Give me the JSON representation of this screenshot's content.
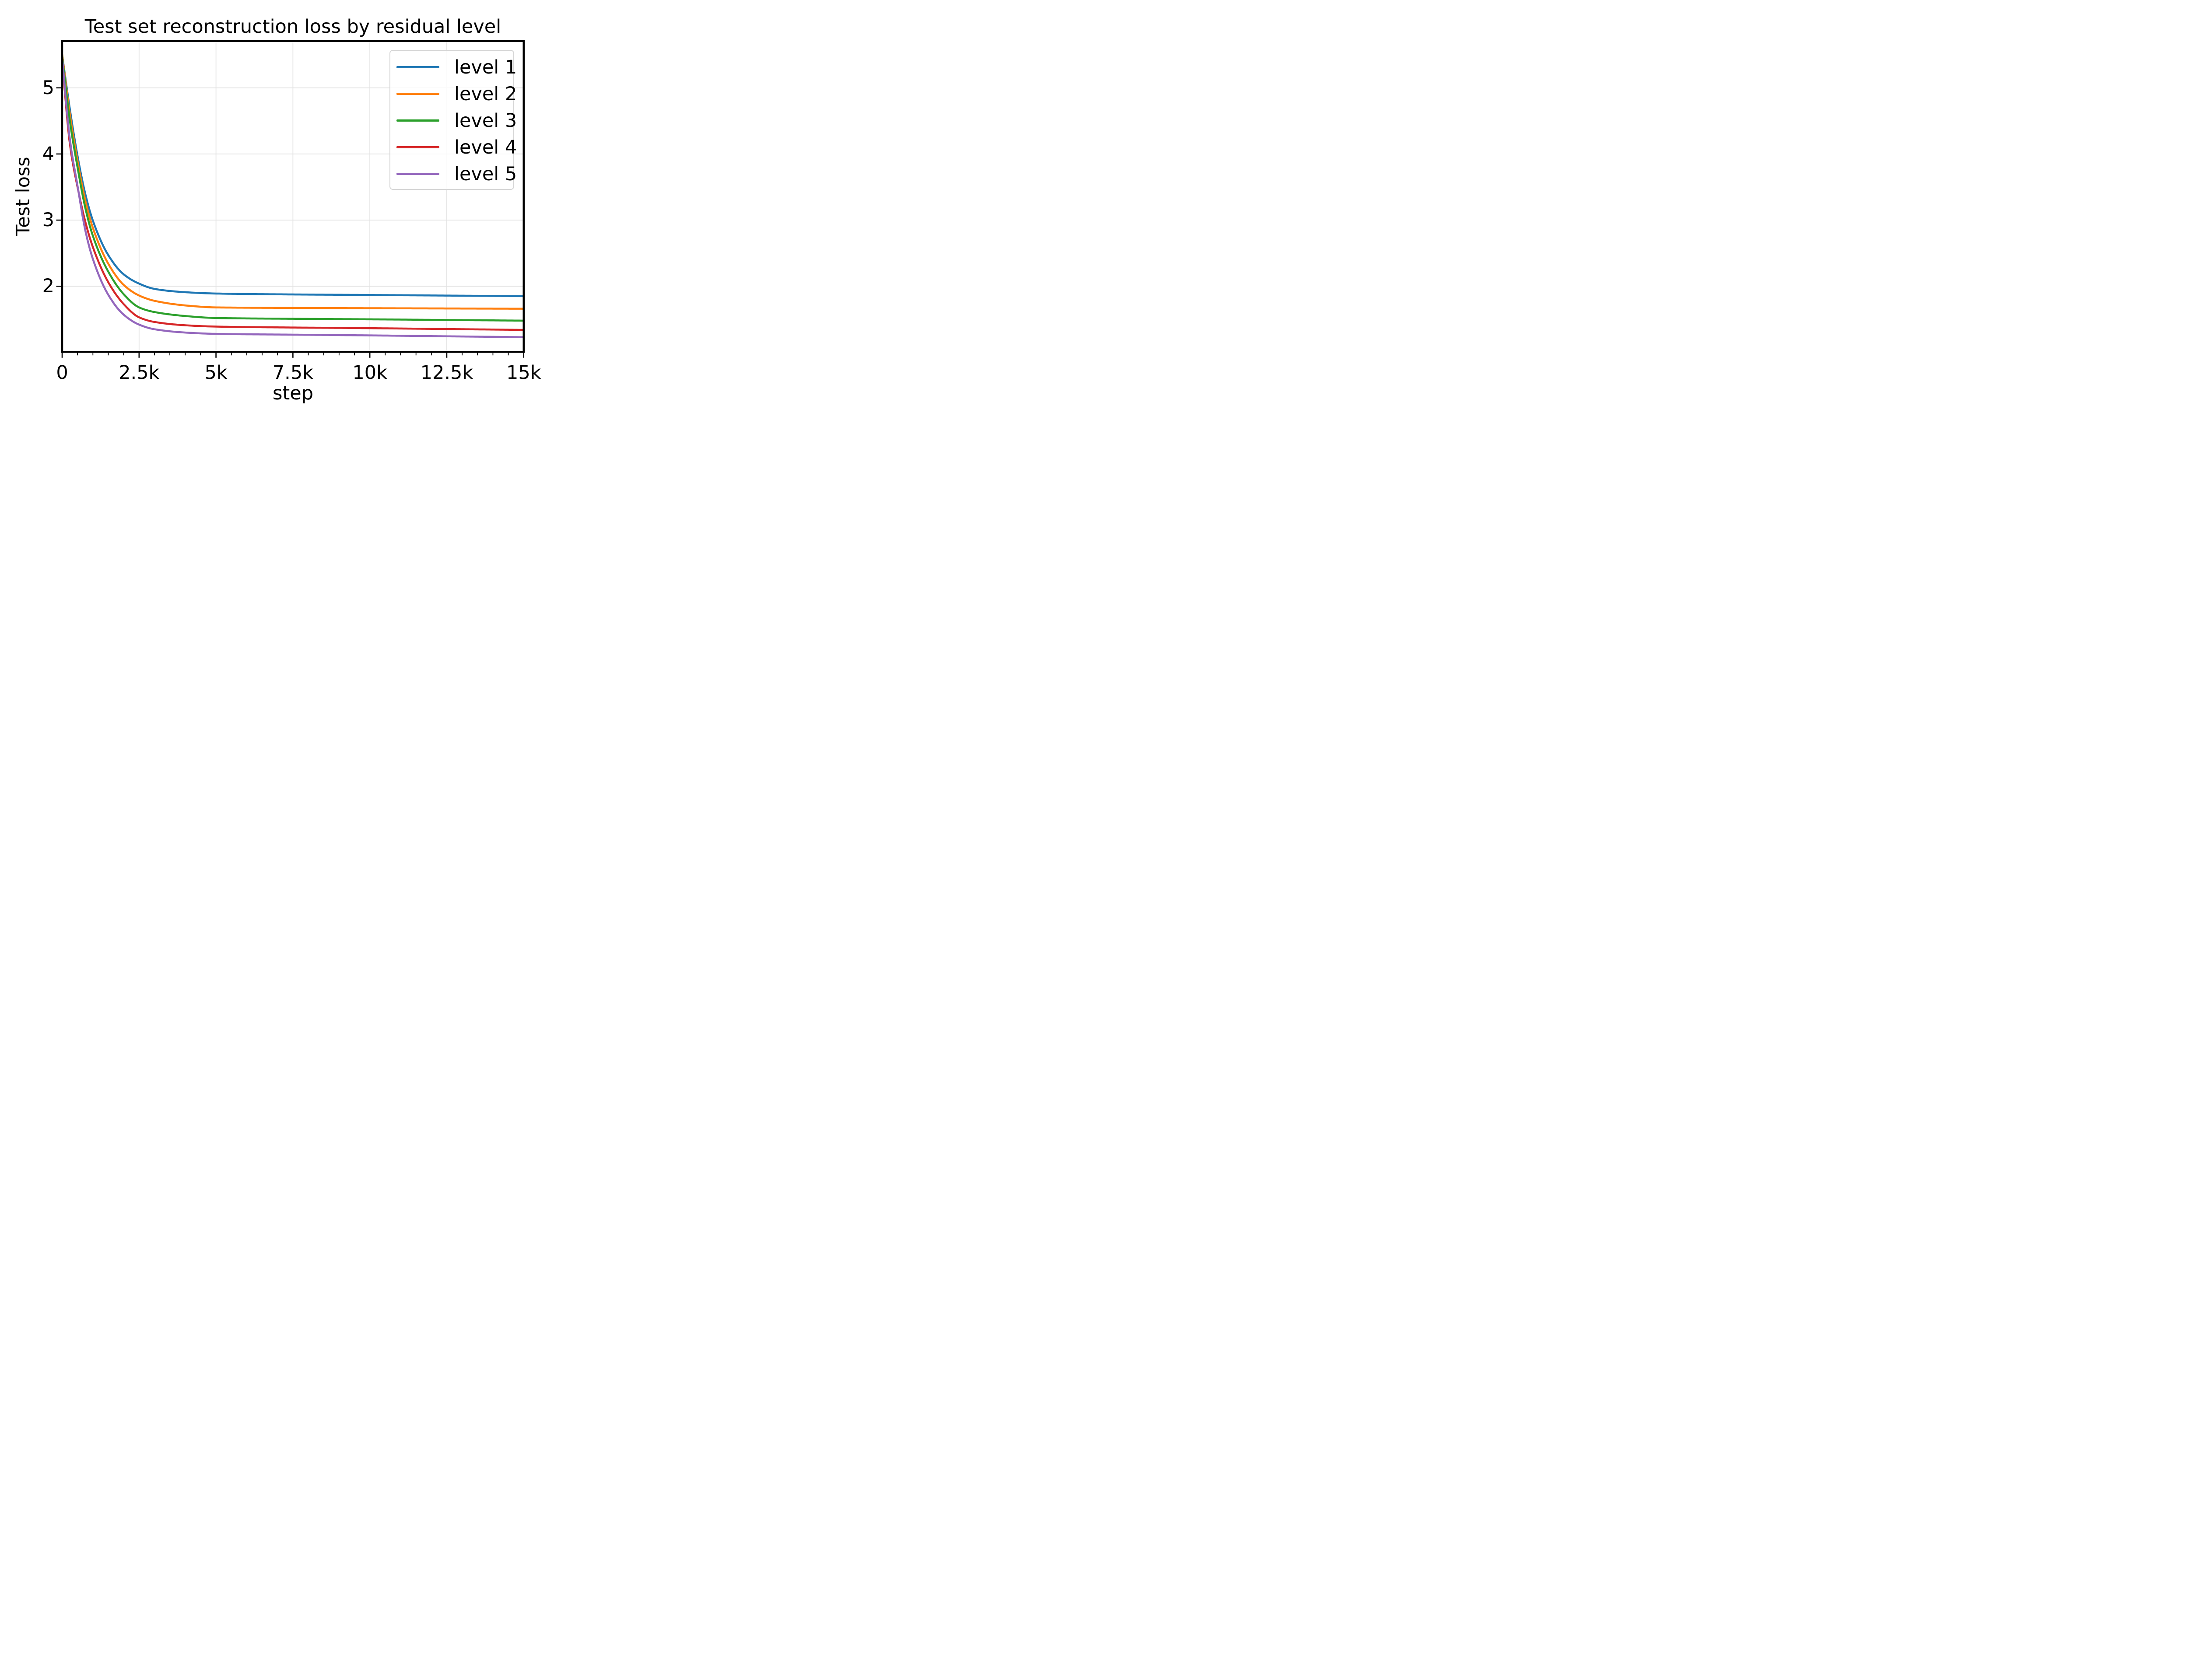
{
  "title": "Test set reconstruction loss by residual level",
  "chart_data": {
    "type": "line",
    "title": "Test set reconstruction loss by residual level",
    "xlabel": "step",
    "ylabel": "Test loss",
    "xlim": [
      0,
      15000
    ],
    "ylim": [
      1.008,
      5.708
    ],
    "grid": true,
    "legend_position": "upper right",
    "x_tick_labels": [
      "0",
      "2.5k",
      "5k",
      "7.5k",
      "10k",
      "12.5k",
      "15k"
    ],
    "x_tick_values": [
      0,
      2500,
      5000,
      7500,
      10000,
      12500,
      15000
    ],
    "x_minor_tick_step": 500,
    "y_tick_labels": [
      "2",
      "3",
      "4",
      "5"
    ],
    "y_tick_values": [
      2,
      3,
      4,
      5
    ],
    "x": [
      0,
      250,
      500,
      750,
      1000,
      1500,
      2000,
      2500,
      3000,
      4000,
      5000,
      7500,
      10000,
      12500,
      15000
    ],
    "series": [
      {
        "name": "level 1",
        "color": "#1f77b4",
        "values": [
          5.5,
          4.68,
          3.97,
          3.4,
          2.99,
          2.47,
          2.18,
          2.04,
          1.96,
          1.91,
          1.89,
          1.876,
          1.868,
          1.859,
          1.85
        ]
      },
      {
        "name": "level 2",
        "color": "#ff7f0e",
        "values": [
          5.51,
          4.6,
          3.89,
          3.3,
          2.88,
          2.34,
          2.02,
          1.86,
          1.78,
          1.71,
          1.68,
          1.672,
          1.668,
          1.664,
          1.66
        ]
      },
      {
        "name": "level 3",
        "color": "#2ca02c",
        "values": [
          5.49,
          4.5,
          3.8,
          3.19,
          2.76,
          2.22,
          1.88,
          1.68,
          1.61,
          1.55,
          1.52,
          1.508,
          1.5,
          1.49,
          1.48
        ]
      },
      {
        "name": "level 4",
        "color": "#d62728",
        "values": [
          5.43,
          4.15,
          3.5,
          2.98,
          2.59,
          2.06,
          1.73,
          1.53,
          1.46,
          1.41,
          1.39,
          1.376,
          1.366,
          1.353,
          1.34
        ]
      },
      {
        "name": "level 5",
        "color": "#9467bd",
        "values": [
          5.46,
          4.22,
          3.52,
          2.85,
          2.41,
          1.87,
          1.57,
          1.42,
          1.35,
          1.3,
          1.28,
          1.268,
          1.257,
          1.243,
          1.23
        ]
      }
    ]
  }
}
